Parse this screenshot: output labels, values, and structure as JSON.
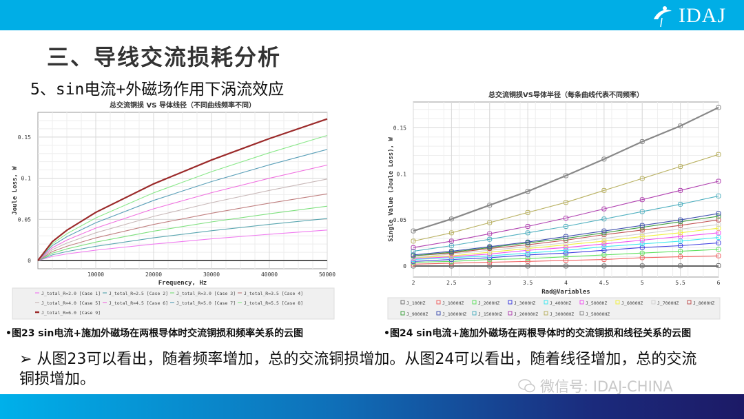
{
  "header": {
    "logo_text": "IDAJ"
  },
  "title": "三、导线交流损耗分析",
  "subtitle": "5、sin电流+外磁场作用下涡流效应",
  "captions": {
    "fig23": "•图23 sin电流+施加外磁场在两根导体时交流铜损和频率关系的云图",
    "fig24": "•图24 sin电流+施加外磁场在两根导体时的交流铜损和线径关系的云图"
  },
  "body_text": "➢ 从图23可以看出，随着频率增加，总的交流铜损增加。从图24可以看出，随着线径增加，总的交流铜损增加。",
  "watermark": "微信号: IDAJ-CHINA",
  "chart_data": [
    {
      "type": "line",
      "title": "总交流铜损 VS 导体线径（不同曲线频率不同）",
      "xlabel": "Frequency, Hz",
      "ylabel": "Joule Loss, W",
      "xlim": [
        0,
        50000
      ],
      "ylim": [
        -0.01,
        0.18
      ],
      "xticks": [
        "10000",
        "20000",
        "30000",
        "40000",
        "50000"
      ],
      "xtick_values": [
        10000,
        20000,
        30000,
        40000,
        50000
      ],
      "yticks": [
        "0",
        "0.05",
        "0.1",
        "0.15"
      ],
      "ytick_values": [
        0,
        0.05,
        0.1,
        0.15
      ],
      "grid": true,
      "legend_position": "bottom",
      "x": [
        0,
        2500,
        5000,
        10000,
        20000,
        30000,
        40000,
        50000
      ],
      "series": [
        {
          "name": "J_total_R=2.0 [Case 1]",
          "color": "#f07cf0",
          "values": [
            0,
            0.005,
            0.008,
            0.0126,
            0.02,
            0.0263,
            0.0319,
            0.037
          ]
        },
        {
          "name": "J_total_R=2.5 [Case 2]",
          "color": "#5aa6b0",
          "values": [
            0,
            0.0068,
            0.0109,
            0.0173,
            0.0276,
            0.0362,
            0.0439,
            0.051
          ]
        },
        {
          "name": "J_total_R=3.0 [Case 3]",
          "color": "#7ee07e",
          "values": [
            0,
            0.0088,
            0.0141,
            0.0224,
            0.0357,
            0.0469,
            0.0568,
            0.066
          ]
        },
        {
          "name": "J_total_R=3.5 [Case 4]",
          "color": "#c08080",
          "values": [
            0,
            0.0109,
            0.0173,
            0.0275,
            0.0438,
            0.0575,
            0.0697,
            0.081
          ]
        },
        {
          "name": "J_total_R=4.0 [Case 5]",
          "color": "#c8b8b8",
          "values": [
            0,
            0.0133,
            0.0212,
            0.0337,
            0.0536,
            0.0703,
            0.0852,
            0.099
          ]
        },
        {
          "name": "J_total_R=4.5 [Case 6]",
          "color": "#f070e0",
          "values": [
            0,
            0.0155,
            0.0248,
            0.0394,
            0.0628,
            0.0824,
            0.0999,
            0.116
          ]
        },
        {
          "name": "J_total_R=5.0 [Case 7]",
          "color": "#5a9fb8",
          "values": [
            0,
            0.0181,
            0.0289,
            0.0459,
            0.073,
            0.0959,
            0.1162,
            0.135
          ]
        },
        {
          "name": "J_total_R=5.5 [Case 8]",
          "color": "#8ae88a",
          "values": [
            0,
            0.0204,
            0.0325,
            0.0517,
            0.0822,
            0.1079,
            0.1309,
            0.152
          ]
        },
        {
          "name": "J_total_R=6.0 [Case 9]",
          "color": "#9b2a2a",
          "values": [
            0,
            0.023,
            0.0368,
            0.0585,
            0.0931,
            0.1221,
            0.1481,
            0.172
          ]
        }
      ]
    },
    {
      "type": "line",
      "title": "总交流铜损VS导体半径（每条曲线代表不同频率）",
      "xlabel": "Rad@Variables",
      "ylabel": "Single Value (Joule Loss), W",
      "xlim": [
        2,
        6
      ],
      "ylim": [
        -0.012,
        0.178
      ],
      "xticks": [
        "2",
        "2.5",
        "3",
        "3.5",
        "4",
        "4.5",
        "5",
        "5.5",
        "6"
      ],
      "xtick_values": [
        2,
        2.5,
        3,
        3.5,
        4,
        4.5,
        5,
        5.5,
        6
      ],
      "yticks": [
        "0",
        "0.05",
        "0.1",
        "0.15"
      ],
      "ytick_values": [
        0,
        0.05,
        0.1,
        0.15
      ],
      "grid": true,
      "legend_position": "bottom",
      "x": [
        2,
        2.5,
        3,
        3.5,
        4,
        4.5,
        5,
        5.5,
        6
      ],
      "series": [
        {
          "name": "J_100HZ",
          "color": "#707070",
          "values": [
            0,
            0,
            0,
            0,
            0,
            0.0001,
            0.0002,
            0.0002,
            0.0003
          ]
        },
        {
          "name": "J_1000HZ",
          "color": "#f06060",
          "values": [
            0.002,
            0.003,
            0.004,
            0.005,
            0.006,
            0.007,
            0.009,
            0.01,
            0.011
          ]
        },
        {
          "name": "J_2000HZ",
          "color": "#60e060",
          "values": [
            0.004,
            0.005,
            0.007,
            0.008,
            0.01,
            0.012,
            0.014,
            0.016,
            0.018
          ]
        },
        {
          "name": "J_3000HZ",
          "color": "#4040e0",
          "values": [
            0.005,
            0.007,
            0.009,
            0.012,
            0.014,
            0.017,
            0.02,
            0.022,
            0.025
          ]
        },
        {
          "name": "J_4000HZ",
          "color": "#40e8f0",
          "values": [
            0.007,
            0.009,
            0.011,
            0.014,
            0.017,
            0.021,
            0.024,
            0.027,
            0.031
          ]
        },
        {
          "name": "J_5000HZ",
          "color": "#f050f0",
          "values": [
            0.008,
            0.01,
            0.013,
            0.017,
            0.02,
            0.024,
            0.028,
            0.032,
            0.036
          ]
        },
        {
          "name": "J_6000HZ",
          "color": "#f0f040",
          "values": [
            0.009,
            0.011,
            0.015,
            0.019,
            0.023,
            0.027,
            0.032,
            0.036,
            0.041
          ]
        },
        {
          "name": "J_7000HZ",
          "color": "#d0d0d0",
          "values": [
            0.009,
            0.013,
            0.017,
            0.021,
            0.025,
            0.03,
            0.035,
            0.04,
            0.045
          ]
        },
        {
          "name": "J_8000HZ",
          "color": "#c05050",
          "values": [
            0.011,
            0.014,
            0.019,
            0.023,
            0.028,
            0.034,
            0.039,
            0.044,
            0.05
          ]
        },
        {
          "name": "J_9000HZ",
          "color": "#40a040",
          "values": [
            0.011,
            0.015,
            0.02,
            0.025,
            0.03,
            0.036,
            0.042,
            0.048,
            0.054
          ]
        },
        {
          "name": "J_10000HZ",
          "color": "#4050b0",
          "values": [
            0.012,
            0.016,
            0.021,
            0.026,
            0.032,
            0.038,
            0.044,
            0.05,
            0.057
          ]
        },
        {
          "name": "J_15000HZ",
          "color": "#50b0c0",
          "values": [
            0.016,
            0.022,
            0.029,
            0.036,
            0.043,
            0.051,
            0.059,
            0.067,
            0.076
          ]
        },
        {
          "name": "J_20000HZ",
          "color": "#b040b0",
          "values": [
            0.02,
            0.027,
            0.035,
            0.043,
            0.052,
            0.062,
            0.072,
            0.082,
            0.092
          ]
        },
        {
          "name": "J_30000HZ",
          "color": "#b8b060",
          "values": [
            0.027,
            0.036,
            0.047,
            0.058,
            0.069,
            0.082,
            0.095,
            0.108,
            0.121
          ]
        },
        {
          "name": "J_50000HZ",
          "color": "#888888",
          "values": [
            0.038,
            0.051,
            0.066,
            0.081,
            0.098,
            0.116,
            0.135,
            0.152,
            0.172
          ]
        }
      ]
    }
  ]
}
